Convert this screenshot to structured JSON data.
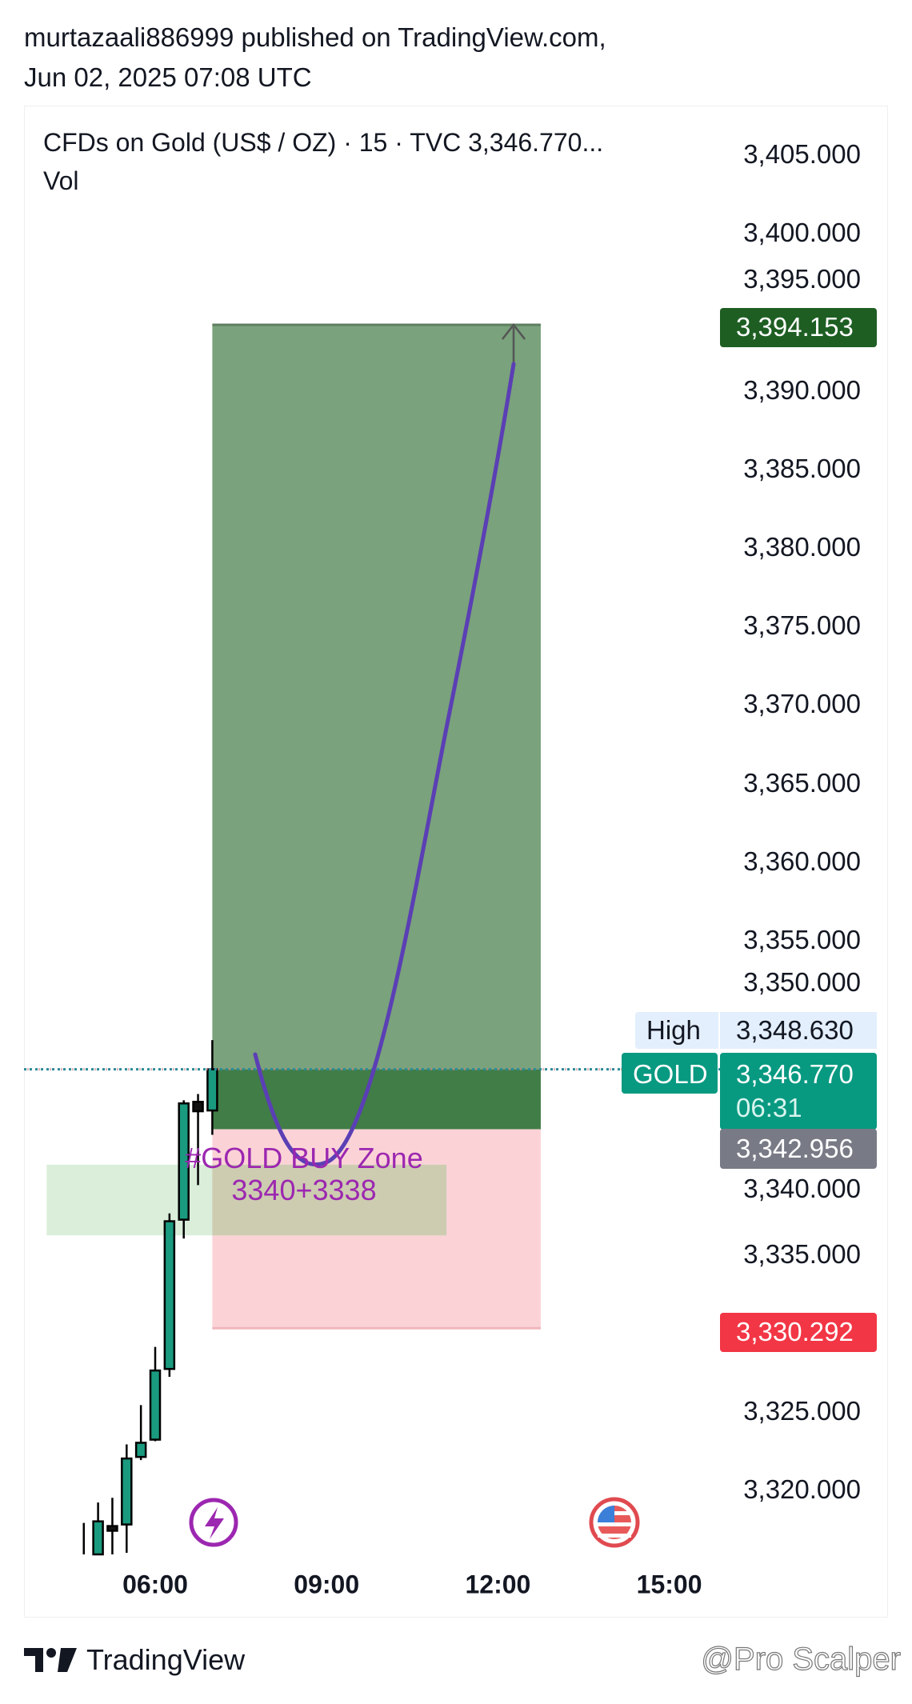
{
  "header": {
    "line1": "murtazaali886999 published on TradingView.com,",
    "line2": "Jun 02, 2025 07:08 UTC"
  },
  "legend": {
    "symbol": "CFDs on Gold (US$ / OZ) · 15 · TVC  3,346.770...",
    "vol": "Vol"
  },
  "price_axis": [
    "3,405.000",
    "3,400.000",
    "3,395.000",
    "3,390.000",
    "3,385.000",
    "3,380.000",
    "3,375.000",
    "3,370.000",
    "3,365.000",
    "3,360.000",
    "3,355.000",
    "3,350.000",
    "3,340.000",
    "3,335.000",
    "3,325.000",
    "3,320.000"
  ],
  "price_axis_values": [
    3405,
    3400,
    3395,
    3390,
    3385,
    3380,
    3375,
    3370,
    3365,
    3360,
    3355,
    3350,
    3340,
    3335,
    3325,
    3320
  ],
  "time_axis": [
    {
      "label": "06:00",
      "hour": 6
    },
    {
      "label": "09:00",
      "hour": 9
    },
    {
      "label": "12:00",
      "hour": 12
    },
    {
      "label": "15:00",
      "hour": 15
    }
  ],
  "badges": {
    "target": {
      "value": "3,394.153",
      "price": 3394.153,
      "color": "#1e5e23"
    },
    "high_label": "High",
    "high": {
      "value": "3,348.630",
      "price": 3348.63
    },
    "symbol_label": "GOLD",
    "last": {
      "value": "3,346.770",
      "countdown": "06:31",
      "price": 3346.77,
      "color": "#089981"
    },
    "entry_low": {
      "value": "3,342.956",
      "price": 3342.956,
      "color": "#787b86"
    },
    "stop": {
      "value": "3,330.292",
      "price": 3330.292,
      "color": "#f23645"
    }
  },
  "position": {
    "entry": 3346.77,
    "split": 3342.956,
    "target": 3394.153,
    "stop": 3330.292,
    "start_hour": 7.0,
    "end_hour": 12.75
  },
  "buy_zone": {
    "title": "#GOLD BUY Zone",
    "range": "3340+3338",
    "top": 3340.7,
    "bottom": 3336.2,
    "start_hour": 4.1,
    "end_hour": 11.1
  },
  "candles": [
    {
      "t": 4.75,
      "o": 3316,
      "h": 3317.9,
      "l": 3314,
      "c": 3316
    },
    {
      "t": 5.0,
      "o": 3314,
      "h": 3319.2,
      "l": 3313,
      "c": 3318.0
    },
    {
      "t": 5.25,
      "o": 3317.7,
      "h": 3319.5,
      "l": 3315,
      "c": 3317.4
    },
    {
      "t": 5.5,
      "o": 3317.8,
      "h": 3322.9,
      "l": 3316.0,
      "c": 3322.0
    },
    {
      "t": 5.75,
      "o": 3322.1,
      "h": 3325.4,
      "l": 3321.9,
      "c": 3323.0
    },
    {
      "t": 6.0,
      "o": 3323.2,
      "h": 3329.1,
      "l": 3323.1,
      "c": 3327.6
    },
    {
      "t": 6.25,
      "o": 3327.7,
      "h": 3337.6,
      "l": 3327.2,
      "c": 3337.1
    },
    {
      "t": 6.5,
      "o": 3337.2,
      "h": 3344.8,
      "l": 3336.0,
      "c": 3344.6
    },
    {
      "t": 6.75,
      "o": 3344.7,
      "h": 3345.2,
      "l": 3339.4,
      "c": 3344.1
    },
    {
      "t": 7.0,
      "o": 3344.15,
      "h": 3348.63,
      "l": 3342.6,
      "c": 3346.77
    }
  ],
  "colors": {
    "up": "#1a9a7e",
    "down": "#111111",
    "target_zone": "#7aa27c",
    "entry_zone": "#417d47",
    "stop_zone": "#fbd3d7",
    "buy_zone": "#d3ebd4",
    "path": "#5b3fb5",
    "annotation": "#9c27b0"
  },
  "footer": {
    "brand": "TradingView",
    "watermark": "@Pro Scalper"
  }
}
